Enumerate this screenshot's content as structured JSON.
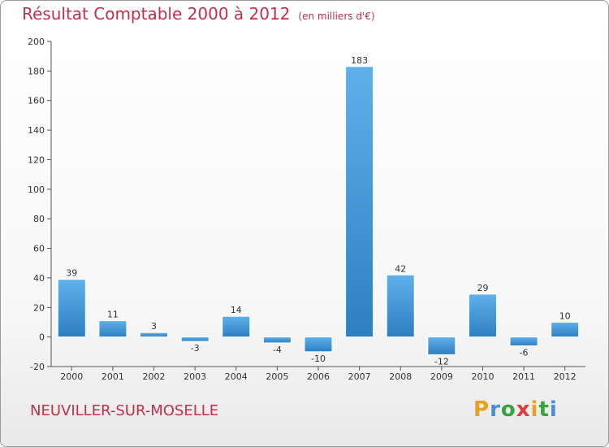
{
  "page": {
    "title": "Résultat Comptable 2000 à 2012",
    "subtitle": "(en milliers d'€)",
    "commune": "NEUVILLER-SUR-MOSELLE",
    "logo": "Proxiti"
  },
  "colors": {
    "title": "#c0304a",
    "bar_light": "#5fb0ea",
    "bar_dark": "#2d7fc0",
    "logo_letters": [
      "#e8a020",
      "#4a8fd4",
      "#3aa040",
      "#e03a3a",
      "#e8a020",
      "#3aa040",
      "#4a8fd4"
    ]
  },
  "chart_data": {
    "type": "bar",
    "title": "Résultat Comptable 2000 à 2012",
    "subtitle": "(en milliers d'€)",
    "categories": [
      "2000",
      "2001",
      "2002",
      "2003",
      "2004",
      "2005",
      "2006",
      "2007",
      "2008",
      "2009",
      "2010",
      "2011",
      "2012"
    ],
    "values": [
      39,
      11,
      3,
      -3,
      14,
      -4,
      -10,
      183,
      42,
      -12,
      29,
      -6,
      10
    ],
    "data_labels": [
      "39",
      "11",
      "3",
      "-3",
      "14",
      "-4",
      "-10",
      "183",
      "42",
      "-12",
      "29",
      "-6",
      "10"
    ],
    "ylim": [
      -20,
      200
    ],
    "yticks": [
      -20,
      0,
      20,
      40,
      60,
      80,
      100,
      120,
      140,
      160,
      180,
      200
    ],
    "xlabel": "",
    "ylabel": "",
    "grid": false
  }
}
